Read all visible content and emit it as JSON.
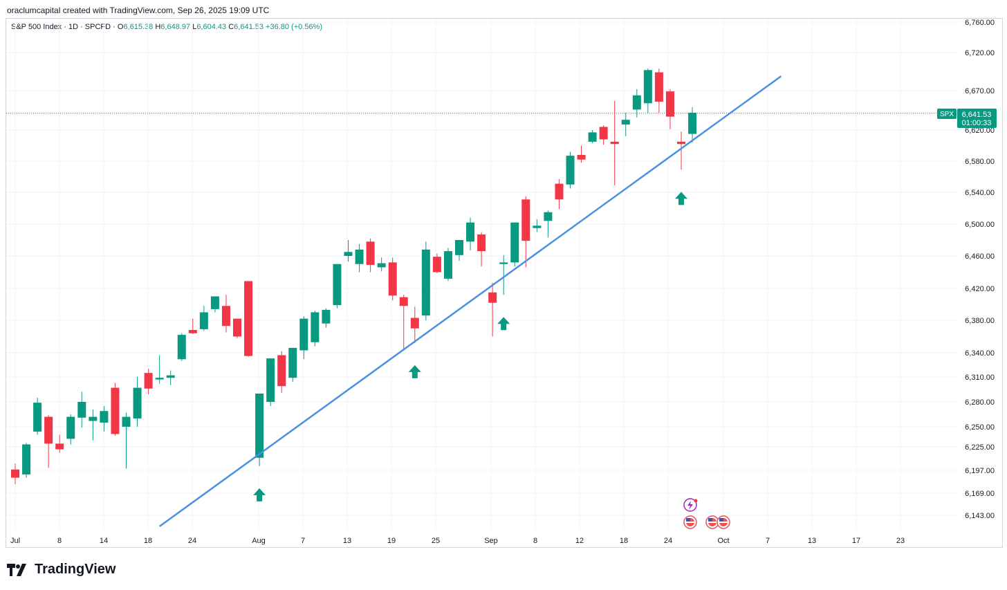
{
  "header": {
    "caption": "oraclumcapital created with TradingView.com, Sep 26, 2025 19:09 UTC"
  },
  "legend": {
    "symbol": "S&P 500 Index · 1D · SPCFD",
    "open_label": "O",
    "open": "6,615.38",
    "high_label": "H",
    "high": "6,648.97",
    "low_label": "L",
    "low": "6,604.43",
    "close_label": "C",
    "close": "6,641.53",
    "change": "+36.80 (+0.56%)"
  },
  "price_badge": {
    "ticker": "SPX",
    "price": "6,641.53",
    "countdown": "01:00:33"
  },
  "brand": {
    "name": "TradingView"
  },
  "colors": {
    "up": "#089981",
    "down": "#f23645",
    "trendline": "#4a90e2",
    "grid": "#f0f3fa"
  },
  "chart_data": {
    "type": "candlestick",
    "title": "S&P 500 Index · 1D · SPCFD",
    "y_ticks": [
      6143,
      6169,
      6197,
      6225,
      6250,
      6280,
      6310,
      6340,
      6380,
      6420,
      6460,
      6500,
      6540,
      6580,
      6620,
      6670,
      6720,
      6760
    ],
    "y_tick_labels": [
      "6,143.00",
      "6,169.00",
      "6,197.00",
      "6,225.00",
      "6,250.00",
      "6,280.00",
      "6,310.00",
      "6,340.00",
      "6,380.00",
      "6,420.00",
      "6,460.00",
      "6,500.00",
      "6,540.00",
      "6,580.00",
      "6,620.00",
      "6,670.00",
      "6,720.00",
      "6,760.00"
    ],
    "x_labels": [
      "Jul",
      "8",
      "14",
      "18",
      "24",
      "Aug",
      "7",
      "13",
      "19",
      "25",
      "Sep",
      "8",
      "12",
      "18",
      "24",
      "Oct",
      "7",
      "13",
      "17",
      "23"
    ],
    "candles": [
      {
        "o": 6198,
        "h": 6205,
        "l": 6180,
        "c": 6188
      },
      {
        "o": 6192,
        "h": 6230,
        "l": 6188,
        "c": 6228
      },
      {
        "o": 6244,
        "h": 6285,
        "l": 6240,
        "c": 6279
      },
      {
        "o": 6262,
        "h": 6264,
        "l": 6200,
        "c": 6229
      },
      {
        "o": 6229,
        "h": 6240,
        "l": 6218,
        "c": 6222
      },
      {
        "o": 6235,
        "h": 6265,
        "l": 6228,
        "c": 6262
      },
      {
        "o": 6261,
        "h": 6292,
        "l": 6249,
        "c": 6280
      },
      {
        "o": 6257,
        "h": 6271,
        "l": 6233,
        "c": 6262
      },
      {
        "o": 6255,
        "h": 6275,
        "l": 6244,
        "c": 6269
      },
      {
        "o": 6297,
        "h": 6303,
        "l": 6239,
        "c": 6241
      },
      {
        "o": 6250,
        "h": 6267,
        "l": 6199,
        "c": 6262
      },
      {
        "o": 6260,
        "h": 6310,
        "l": 6250,
        "c": 6297
      },
      {
        "o": 6315,
        "h": 6320,
        "l": 6289,
        "c": 6296
      },
      {
        "o": 6307,
        "h": 6337,
        "l": 6302,
        "c": 6309
      },
      {
        "o": 6309,
        "h": 6318,
        "l": 6300,
        "c": 6312
      },
      {
        "o": 6332,
        "h": 6364,
        "l": 6330,
        "c": 6362
      },
      {
        "o": 6368,
        "h": 6382,
        "l": 6363,
        "c": 6364
      },
      {
        "o": 6369,
        "h": 6398,
        "l": 6367,
        "c": 6390
      },
      {
        "o": 6394,
        "h": 6410,
        "l": 6390,
        "c": 6410
      },
      {
        "o": 6398,
        "h": 6412,
        "l": 6365,
        "c": 6373
      },
      {
        "o": 6382,
        "h": 6382,
        "l": 6358,
        "c": 6360
      },
      {
        "o": 6429,
        "h": 6429,
        "l": 6335,
        "c": 6336
      },
      {
        "o": 6212,
        "h": 6290,
        "l": 6202,
        "c": 6290
      },
      {
        "o": 6280,
        "h": 6333,
        "l": 6275,
        "c": 6333
      },
      {
        "o": 6337,
        "h": 6342,
        "l": 6291,
        "c": 6299
      },
      {
        "o": 6309,
        "h": 6346,
        "l": 6304,
        "c": 6346
      },
      {
        "o": 6343,
        "h": 6385,
        "l": 6332,
        "c": 6382
      },
      {
        "o": 6353,
        "h": 6392,
        "l": 6348,
        "c": 6390
      },
      {
        "o": 6376,
        "h": 6395,
        "l": 6371,
        "c": 6393
      },
      {
        "o": 6399,
        "h": 6450,
        "l": 6395,
        "c": 6450
      },
      {
        "o": 6460,
        "h": 6480,
        "l": 6453,
        "c": 6465
      },
      {
        "o": 6450,
        "h": 6475,
        "l": 6440,
        "c": 6468
      },
      {
        "o": 6478,
        "h": 6482,
        "l": 6440,
        "c": 6449
      },
      {
        "o": 6446,
        "h": 6458,
        "l": 6441,
        "c": 6451
      },
      {
        "o": 6452,
        "h": 6458,
        "l": 6405,
        "c": 6411
      },
      {
        "o": 6409,
        "h": 6412,
        "l": 6345,
        "c": 6398
      },
      {
        "o": 6383,
        "h": 6397,
        "l": 6352,
        "c": 6370
      },
      {
        "o": 6386,
        "h": 6478,
        "l": 6380,
        "c": 6468
      },
      {
        "o": 6459,
        "h": 6463,
        "l": 6439,
        "c": 6440
      },
      {
        "o": 6432,
        "h": 6470,
        "l": 6429,
        "c": 6466
      },
      {
        "o": 6461,
        "h": 6480,
        "l": 6454,
        "c": 6480
      },
      {
        "o": 6478,
        "h": 6508,
        "l": 6467,
        "c": 6502
      },
      {
        "o": 6487,
        "h": 6490,
        "l": 6447,
        "c": 6466
      },
      {
        "o": 6415,
        "h": 6427,
        "l": 6360,
        "c": 6402
      },
      {
        "o": 6450,
        "h": 6461,
        "l": 6412,
        "c": 6452
      },
      {
        "o": 6452,
        "h": 6502,
        "l": 6447,
        "c": 6502
      },
      {
        "o": 6531,
        "h": 6535,
        "l": 6446,
        "c": 6479
      },
      {
        "o": 6495,
        "h": 6506,
        "l": 6490,
        "c": 6498
      },
      {
        "o": 6504,
        "h": 6517,
        "l": 6483,
        "c": 6515
      },
      {
        "o": 6551,
        "h": 6557,
        "l": 6519,
        "c": 6531
      },
      {
        "o": 6550,
        "h": 6592,
        "l": 6545,
        "c": 6587
      },
      {
        "o": 6588,
        "h": 6600,
        "l": 6578,
        "c": 6582
      },
      {
        "o": 6605,
        "h": 6620,
        "l": 6603,
        "c": 6617
      },
      {
        "o": 6624,
        "h": 6626,
        "l": 6601,
        "c": 6608
      },
      {
        "o": 6605,
        "h": 6657,
        "l": 6549,
        "c": 6602
      },
      {
        "o": 6627,
        "h": 6642,
        "l": 6612,
        "c": 6633
      },
      {
        "o": 6646,
        "h": 6672,
        "l": 6636,
        "c": 6664
      },
      {
        "o": 6654,
        "h": 6699,
        "l": 6642,
        "c": 6697
      },
      {
        "o": 6694,
        "h": 6699,
        "l": 6642,
        "c": 6656
      },
      {
        "o": 6669,
        "h": 6672,
        "l": 6621,
        "c": 6637
      },
      {
        "o": 6605,
        "h": 6618,
        "l": 6569,
        "c": 6602
      },
      {
        "o": 6615,
        "h": 6649,
        "l": 6604,
        "c": 6642
      }
    ],
    "last_price": 6641.53,
    "trendline": {
      "from": {
        "bar": 13,
        "price": 6130
      },
      "to": {
        "bar": 69,
        "price": 6689
      }
    },
    "support_arrows": [
      22,
      36,
      44,
      60
    ]
  }
}
